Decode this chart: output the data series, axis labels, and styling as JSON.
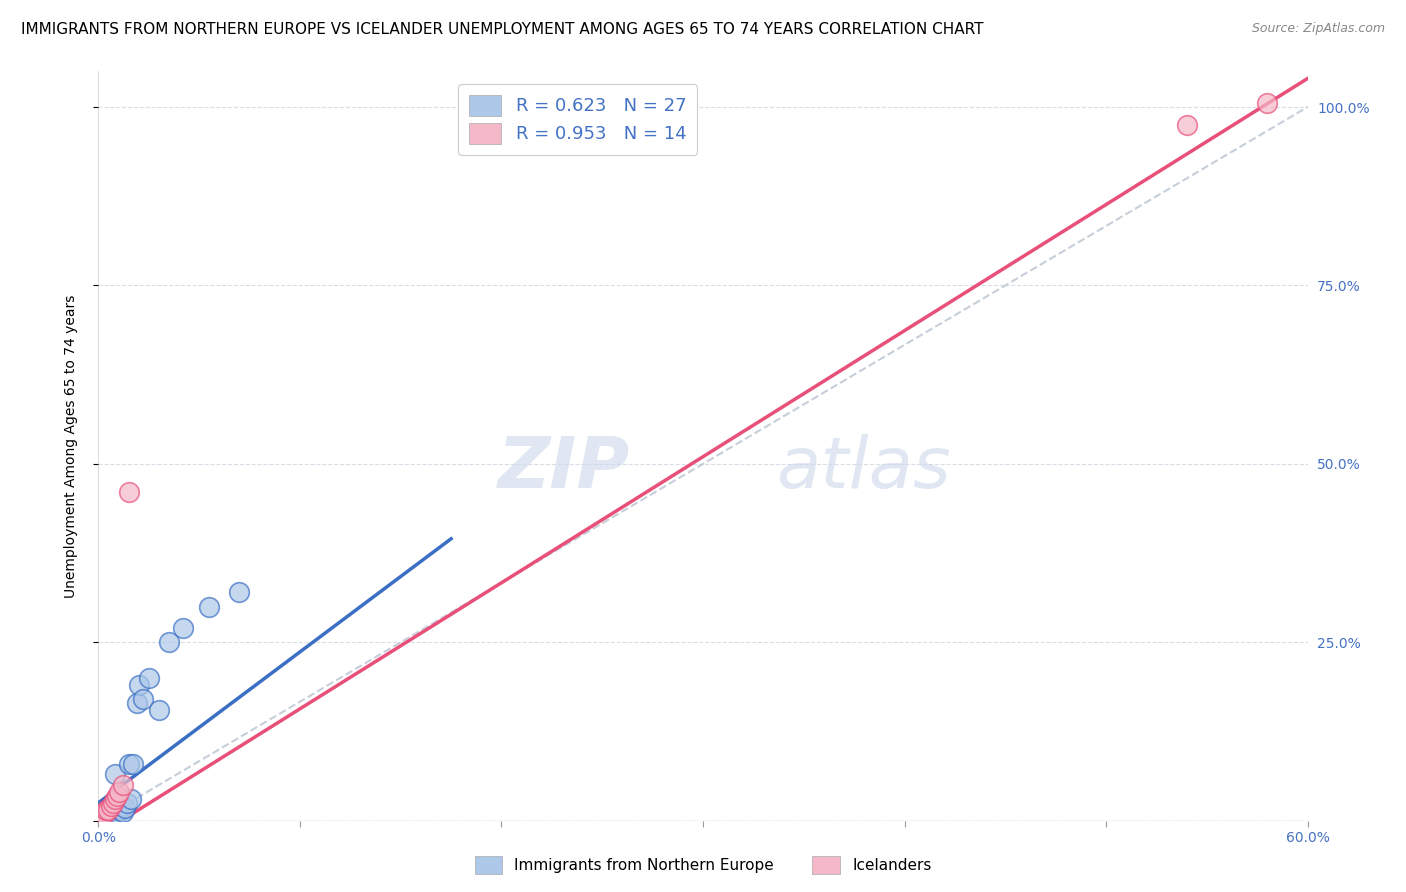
{
  "title": "IMMIGRANTS FROM NORTHERN EUROPE VS ICELANDER UNEMPLOYMENT AMONG AGES 65 TO 74 YEARS CORRELATION CHART",
  "source": "Source: ZipAtlas.com",
  "ylabel": "Unemployment Among Ages 65 to 74 years",
  "xlim": [
    0.0,
    0.6
  ],
  "ylim": [
    0.0,
    1.05
  ],
  "xticks": [
    0.0,
    0.1,
    0.2,
    0.3,
    0.4,
    0.5,
    0.6
  ],
  "xtick_labels": [
    "0.0%",
    "",
    "",
    "",
    "",
    "",
    "60.0%"
  ],
  "ytick_positions": [
    0.0,
    0.25,
    0.5,
    0.75,
    1.0
  ],
  "ytick_labels": [
    "",
    "25.0%",
    "50.0%",
    "75.0%",
    "100.0%"
  ],
  "blue_R": 0.623,
  "blue_N": 27,
  "pink_R": 0.953,
  "pink_N": 14,
  "blue_color": "#adc8e8",
  "pink_color": "#f5b8c8",
  "blue_line_color": "#3a6fc4",
  "pink_line_color": "#e8507a",
  "diag_line_color": "#b8c4d0",
  "watermark_zip": "ZIP",
  "watermark_atlas": "atlas",
  "blue_scatter_x": [
    0.002,
    0.003,
    0.004,
    0.005,
    0.006,
    0.006,
    0.007,
    0.008,
    0.008,
    0.009,
    0.01,
    0.011,
    0.012,
    0.013,
    0.014,
    0.015,
    0.016,
    0.017,
    0.019,
    0.02,
    0.022,
    0.025,
    0.03,
    0.035,
    0.042,
    0.055,
    0.07
  ],
  "blue_scatter_y": [
    0.005,
    0.008,
    0.01,
    0.012,
    0.015,
    0.02,
    0.018,
    0.025,
    0.065,
    0.01,
    0.015,
    0.02,
    0.012,
    0.018,
    0.025,
    0.08,
    0.03,
    0.08,
    0.165,
    0.19,
    0.17,
    0.2,
    0.155,
    0.25,
    0.27,
    0.3,
    0.32
  ],
  "pink_scatter_x": [
    0.001,
    0.002,
    0.003,
    0.004,
    0.005,
    0.006,
    0.007,
    0.008,
    0.009,
    0.01,
    0.012,
    0.015,
    0.54,
    0.58
  ],
  "pink_scatter_y": [
    0.005,
    0.01,
    0.01,
    0.015,
    0.015,
    0.02,
    0.025,
    0.03,
    0.035,
    0.04,
    0.05,
    0.46,
    0.975,
    1.005
  ],
  "blue_line_x": [
    0.0,
    0.175
  ],
  "blue_line_y": [
    0.025,
    0.395
  ],
  "pink_line_x": [
    0.0,
    0.6
  ],
  "pink_line_y": [
    -0.02,
    1.04
  ],
  "diag_line_x": [
    0.0,
    0.6
  ],
  "diag_line_y": [
    0.0,
    1.0
  ],
  "legend_blue_label": "R = 0.623   N = 27",
  "legend_pink_label": "R = 0.953   N = 14",
  "bottom_legend_blue": "Immigrants from Northern Europe",
  "bottom_legend_pink": "Icelanders",
  "title_fontsize": 11,
  "axis_label_fontsize": 10,
  "tick_fontsize": 10,
  "right_tick_color": "#4472c4",
  "x_tick_color": "#4472c4",
  "background_color": "#ffffff",
  "grid_color": "#d8dde8",
  "legend_label_color": "#4472c4"
}
